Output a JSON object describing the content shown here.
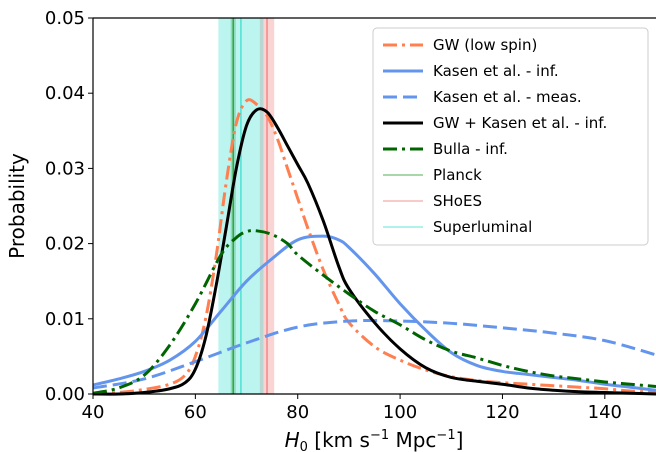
{
  "chart_data": {
    "type": "line",
    "xlabel": "H_0 [km s^-1 Mpc^-1]",
    "ylabel": "Probability",
    "xlim": [
      40,
      150
    ],
    "ylim": [
      0,
      0.05
    ],
    "xticks": [
      40,
      60,
      80,
      100,
      120,
      140
    ],
    "yticks": [
      0.0,
      0.01,
      0.02,
      0.03,
      0.04,
      0.05
    ],
    "legend_placement": "top-right",
    "bands": [
      {
        "name": "Planck",
        "center": 67.4,
        "low": 66.9,
        "high": 67.9,
        "color": "#2ca02c"
      },
      {
        "name": "SHoES",
        "center": 74.0,
        "low": 72.6,
        "high": 75.4,
        "color": "#f08080"
      },
      {
        "name": "Superluminal",
        "center": 68.9,
        "low": 64.5,
        "high": 73.3,
        "color": "#40e0d0"
      }
    ],
    "series": [
      {
        "name": "GW (low spin)",
        "color": "#ff7f50",
        "style": "dashdot",
        "x": [
          40,
          45,
          50,
          55,
          58,
          60,
          62,
          64,
          66,
          68,
          70,
          72,
          74,
          76,
          78,
          80,
          82,
          85,
          88,
          90,
          95,
          100,
          105,
          110,
          115,
          120,
          125,
          130,
          135,
          140,
          145,
          150
        ],
        "y": [
          0.0,
          0.0002,
          0.0006,
          0.0013,
          0.0025,
          0.005,
          0.01,
          0.018,
          0.028,
          0.036,
          0.039,
          0.0385,
          0.037,
          0.034,
          0.03,
          0.026,
          0.022,
          0.0165,
          0.012,
          0.0095,
          0.0063,
          0.0045,
          0.0032,
          0.0023,
          0.0018,
          0.0015,
          0.0013,
          0.0011,
          0.0009,
          0.0007,
          0.0004,
          0.0002
        ]
      },
      {
        "name": "Kasen et al. - inf.",
        "color": "#6495ed",
        "style": "solid",
        "x": [
          40,
          45,
          50,
          55,
          60,
          65,
          70,
          75,
          80,
          85,
          88,
          90,
          95,
          100,
          105,
          110,
          115,
          120,
          125,
          130,
          135,
          140,
          145,
          150
        ],
        "y": [
          0.0012,
          0.002,
          0.003,
          0.0045,
          0.007,
          0.011,
          0.015,
          0.018,
          0.0205,
          0.021,
          0.0205,
          0.0195,
          0.016,
          0.012,
          0.0085,
          0.0055,
          0.0038,
          0.003,
          0.0026,
          0.0022,
          0.0018,
          0.0013,
          0.0009,
          0.0005
        ]
      },
      {
        "name": "Kasen et al. - meas.",
        "color": "#6495ed",
        "style": "dashed",
        "x": [
          40,
          50,
          60,
          70,
          80,
          90,
          100,
          110,
          120,
          130,
          140,
          150
        ],
        "y": [
          0.0008,
          0.002,
          0.0043,
          0.0068,
          0.0089,
          0.0097,
          0.0097,
          0.0094,
          0.0088,
          0.0081,
          0.0071,
          0.0052
        ]
      },
      {
        "name": "GW + Kasen et al. - inf.",
        "color": "#000000",
        "style": "solid",
        "x": [
          40,
          45,
          50,
          55,
          58,
          60,
          62,
          64,
          66,
          68,
          70,
          72,
          74,
          76,
          78,
          80,
          82,
          85,
          88,
          90,
          95,
          100,
          105,
          110,
          115,
          120,
          125,
          130,
          135,
          140,
          145,
          150
        ],
        "y": [
          0.0,
          0.0,
          0.0002,
          0.0007,
          0.0015,
          0.0033,
          0.0075,
          0.0142,
          0.022,
          0.03,
          0.0357,
          0.0378,
          0.0375,
          0.0355,
          0.033,
          0.0305,
          0.028,
          0.023,
          0.017,
          0.014,
          0.0095,
          0.006,
          0.0035,
          0.0022,
          0.0017,
          0.0013,
          0.0008,
          0.0005,
          0.0003,
          0.0002,
          0.0001,
          0.0
        ]
      },
      {
        "name": "Bulla - inf.",
        "color": "#006400",
        "style": "dashdot",
        "x": [
          40,
          45,
          50,
          55,
          60,
          65,
          68,
          70,
          72,
          75,
          78,
          80,
          85,
          90,
          95,
          100,
          105,
          110,
          115,
          120,
          125,
          130,
          135,
          140,
          145,
          150
        ],
        "y": [
          0.0001,
          0.0008,
          0.0025,
          0.0065,
          0.012,
          0.0185,
          0.0208,
          0.0216,
          0.0217,
          0.0212,
          0.02,
          0.0185,
          0.0158,
          0.0133,
          0.011,
          0.0092,
          0.0072,
          0.0057,
          0.0048,
          0.0038,
          0.003,
          0.0024,
          0.002,
          0.0016,
          0.0013,
          0.001
        ]
      }
    ]
  },
  "legend": {
    "items": [
      {
        "label": "GW (low spin)"
      },
      {
        "label": "Kasen et al. - inf."
      },
      {
        "label": "Kasen et al. - meas."
      },
      {
        "label": "GW + Kasen et al. - inf."
      },
      {
        "label": "Bulla - inf."
      },
      {
        "label": "Planck"
      },
      {
        "label": "SHoES"
      },
      {
        "label": "Superluminal"
      }
    ]
  }
}
